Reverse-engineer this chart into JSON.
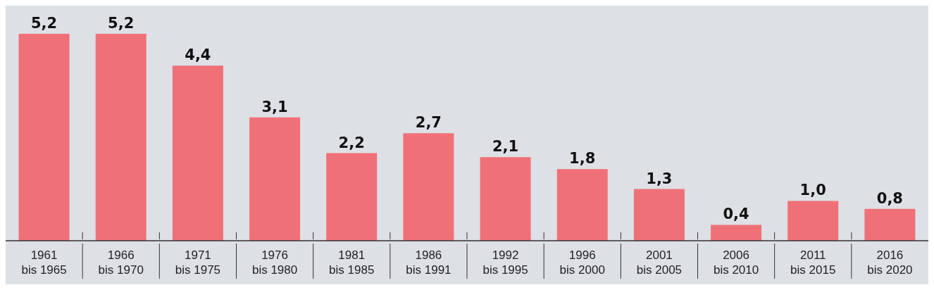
{
  "chart_data": {
    "type": "bar",
    "categories": [
      "1961 bis 1965",
      "1966 bis 1970",
      "1971 bis 1975",
      "1976 bis 1980",
      "1981 bis 1985",
      "1986 bis 1991",
      "1992 bis 1995",
      "1996 bis 2000",
      "2001 bis 2005",
      "2006 bis 2010",
      "2011 bis 2015",
      "2016 bis 2020"
    ],
    "values": [
      5.2,
      5.2,
      4.4,
      3.1,
      2.2,
      2.7,
      2.1,
      1.8,
      1.3,
      0.4,
      1.0,
      0.8
    ],
    "value_labels": [
      "5,2",
      "5,2",
      "4,4",
      "3,1",
      "2,2",
      "2,7",
      "2,1",
      "1,8",
      "1,3",
      "0,4",
      "1,0",
      "0,8"
    ],
    "color": "#f07078",
    "grid": false
  }
}
